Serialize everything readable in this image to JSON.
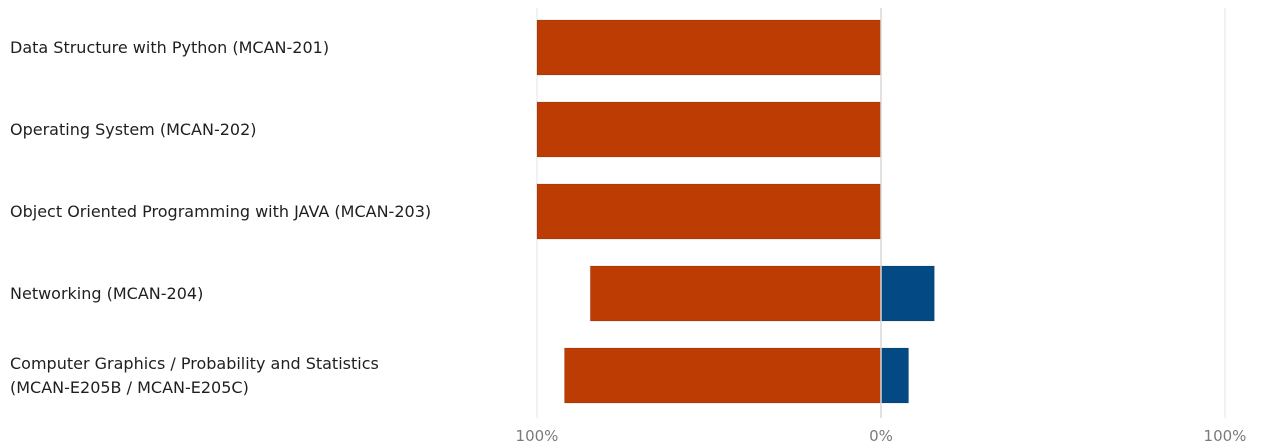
{
  "chart_data": {
    "type": "bar",
    "orientation": "horizontal-diverging",
    "categories": [
      [
        "Data Structure with Python (MCAN-201)"
      ],
      [
        "Operating System (MCAN-202)"
      ],
      [
        "Object Oriented Programming with JAVA (MCAN-203)"
      ],
      [
        "Networking (MCAN-204)"
      ],
      [
        "Computer Graphics / Probability and Statistics",
        "(MCAN-E205B / MCAN-E205C)"
      ]
    ],
    "series": [
      {
        "color": "#bc3c04",
        "side": "left",
        "values": [
          100,
          100,
          100,
          84.5,
          92
        ]
      },
      {
        "color": "#034a85",
        "side": "right",
        "values": [
          0,
          0,
          0,
          15.5,
          8
        ]
      }
    ],
    "xlim": [
      -100,
      100
    ],
    "tick_labels": [
      "100%",
      "0%",
      "100%"
    ],
    "grid": true
  }
}
